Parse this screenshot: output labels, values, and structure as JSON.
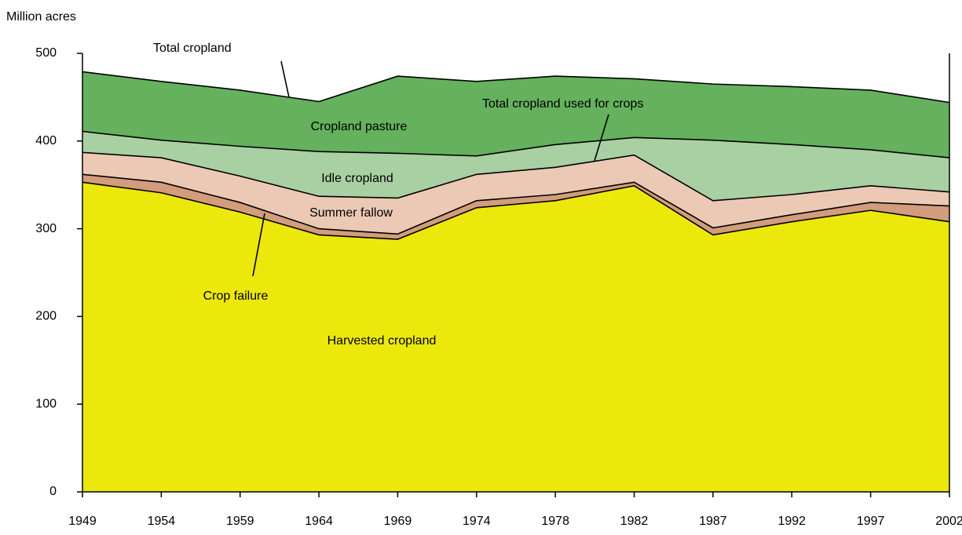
{
  "chart_data": {
    "type": "stacked-area",
    "y_label": "Million acres",
    "categories": [
      "1949",
      "1954",
      "1959",
      "1964",
      "1969",
      "1974",
      "1978",
      "1982",
      "1987",
      "1992",
      "1997",
      "2002"
    ],
    "series": [
      {
        "name": "Harvested cropland",
        "color": "#ece80c",
        "values": [
          353,
          341,
          319,
          293,
          288,
          324,
          332,
          349,
          293,
          308,
          321,
          308
        ]
      },
      {
        "name": "Crop failure",
        "color": "#d39c7c",
        "values": [
          9,
          12,
          11,
          7,
          6,
          8,
          7,
          4,
          8,
          8,
          9,
          18
        ]
      },
      {
        "name": "Summer fallow",
        "color": "#ebc9b5",
        "values": [
          25,
          28,
          30,
          37,
          41,
          30,
          31,
          31,
          31,
          23,
          19,
          16
        ]
      },
      {
        "name": "Idle cropland",
        "color": "#a9d0a2",
        "values": [
          24,
          20,
          34,
          51,
          51,
          21,
          26,
          20,
          69,
          57,
          41,
          39
        ]
      },
      {
        "name": "Cropland pasture",
        "color": "#65b15e",
        "values": [
          68,
          67,
          64,
          57,
          88,
          85,
          78,
          67,
          64,
          66,
          68,
          63
        ]
      }
    ],
    "annotations": [
      "Total cropland",
      "Total cropland used for crops"
    ],
    "ylim": [
      0,
      500
    ],
    "yticks": [
      0,
      100,
      200,
      300,
      400,
      500
    ]
  }
}
